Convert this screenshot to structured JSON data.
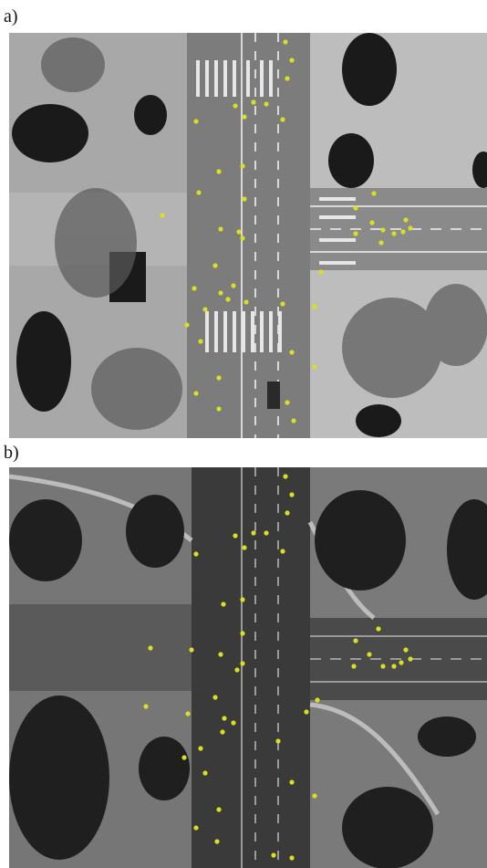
{
  "panels": [
    {
      "label": "a)",
      "kind": "grayscale aerial photo of road intersection",
      "marker_color": "#d9e021"
    },
    {
      "label": "b)",
      "kind": "thermal aerial photo of road intersection",
      "marker_color": "#d9e021"
    }
  ],
  "colors": {
    "marker": "#d9e021",
    "road_a": "#7c7c7c",
    "road_b": "#3a3a3a"
  }
}
